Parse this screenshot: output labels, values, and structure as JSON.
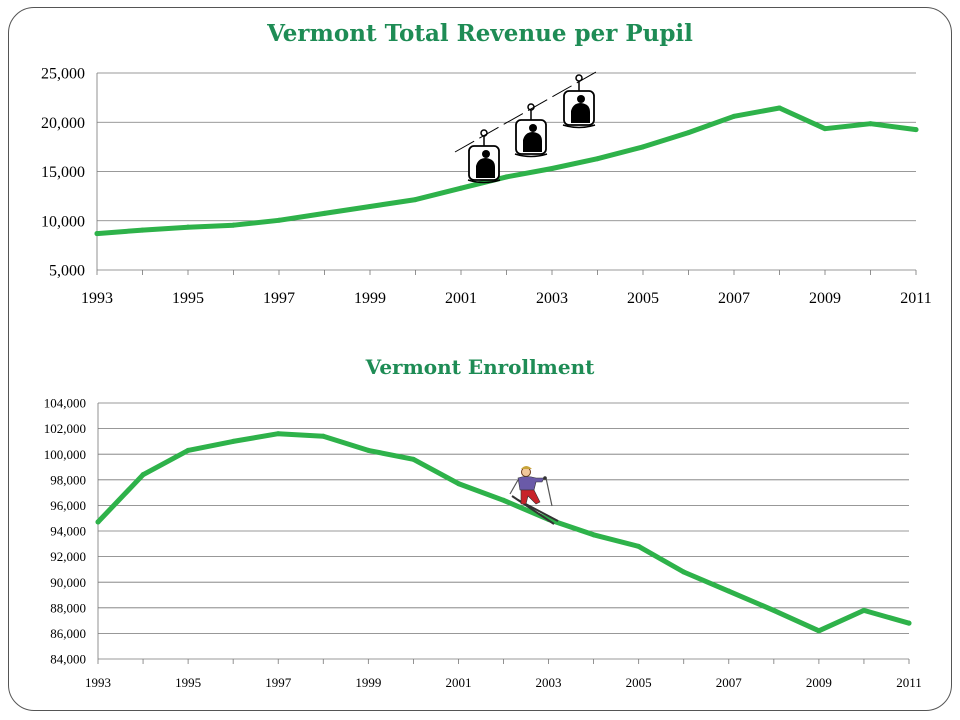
{
  "chart_data": [
    {
      "type": "line",
      "title": "Vermont Total Revenue per Pupil",
      "xlabel": "",
      "ylabel": "",
      "x": [
        1993,
        1994,
        1995,
        1996,
        1997,
        1998,
        1999,
        2000,
        2001,
        2002,
        2003,
        2004,
        2005,
        2006,
        2007,
        2008,
        2009,
        2010,
        2011
      ],
      "values": [
        8700,
        9050,
        9350,
        9550,
        10050,
        10750,
        11450,
        12150,
        13300,
        14450,
        15300,
        16300,
        17500,
        18950,
        20600,
        21450,
        19350,
        19850,
        19250
      ],
      "x_tick_labels": [
        "1993",
        "1995",
        "1997",
        "1999",
        "2001",
        "2003",
        "2005",
        "2007",
        "2009",
        "2011"
      ],
      "y_tick_labels": [
        "5,000",
        "10,000",
        "15,000",
        "20,000",
        "25,000"
      ],
      "ylim": [
        5000,
        25000
      ],
      "xlim": [
        1993,
        2011
      ],
      "grid": true,
      "line_color": "#2eb24a",
      "annotation": "ski-lift-chairs-icon"
    },
    {
      "type": "line",
      "title": "Vermont Enrollment",
      "xlabel": "",
      "ylabel": "",
      "x": [
        1993,
        1994,
        1995,
        1996,
        1997,
        1998,
        1999,
        2000,
        2001,
        2002,
        2003,
        2004,
        2005,
        2006,
        2007,
        2008,
        2009,
        2010,
        2011
      ],
      "values": [
        94700,
        98400,
        100300,
        101000,
        101600,
        101400,
        100300,
        99600,
        97700,
        96400,
        94900,
        93700,
        92800,
        90800,
        89300,
        87800,
        86200,
        87800,
        86800
      ],
      "x_tick_labels": [
        "1993",
        "1995",
        "1997",
        "1999",
        "2001",
        "2003",
        "2005",
        "2007",
        "2009",
        "2011"
      ],
      "y_tick_labels": [
        "84,000",
        "86,000",
        "88,000",
        "90,000",
        "92,000",
        "94,000",
        "96,000",
        "98,000",
        "100,000",
        "102,000",
        "104,000"
      ],
      "ylim": [
        84000,
        104000
      ],
      "xlim": [
        1993,
        2011
      ],
      "grid": true,
      "line_color": "#2eb24a",
      "annotation": "skier-icon"
    }
  ]
}
